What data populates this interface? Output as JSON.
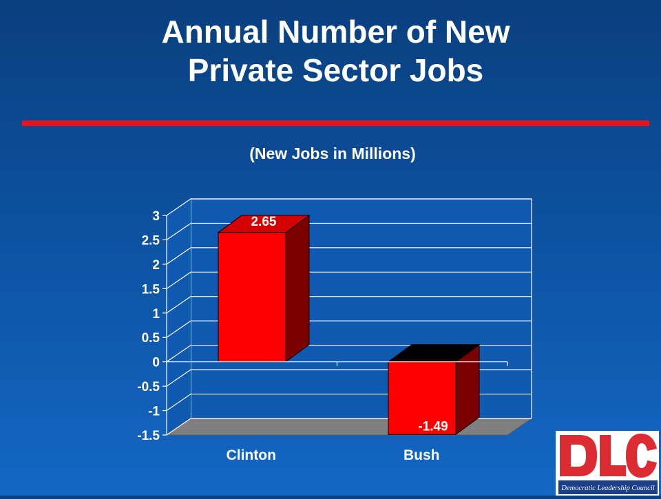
{
  "title_lines": [
    "Annual Number of New",
    "Private Sector Jobs"
  ],
  "subtitle": "(New Jobs in Millions)",
  "chart_data": {
    "type": "bar",
    "categories": [
      "Clinton",
      "Bush"
    ],
    "values": [
      2.65,
      -1.49
    ],
    "data_labels": [
      "2.65",
      "-1.49"
    ],
    "ylim": [
      -1.5,
      3
    ],
    "yticks": [
      3,
      2.5,
      2,
      1.5,
      1,
      0.5,
      0,
      -0.5,
      -1,
      -1.5
    ],
    "ytick_labels": [
      "3",
      "2.5",
      "2",
      "1.5",
      "1",
      "0.5",
      "0",
      "-0.5",
      "-1",
      "-1.5"
    ],
    "grid": true,
    "three_d": true,
    "legend": "none",
    "colors": {
      "bar_front": "#ff0000",
      "bar_side": "#7a0000",
      "bar_top_positive": "#d30000",
      "bar_top_negative": "#000000",
      "floor": "#7f7f7f",
      "wall": "#0f59b0",
      "grid": "#ffffff",
      "text": "#ffffff"
    }
  },
  "logo": {
    "text": "DLC",
    "tagline": "Democratic Leadership Council",
    "colors": {
      "letters": "#dc2b32",
      "band": "#ffffff",
      "tagline_bg": "#1b3f8b"
    }
  }
}
